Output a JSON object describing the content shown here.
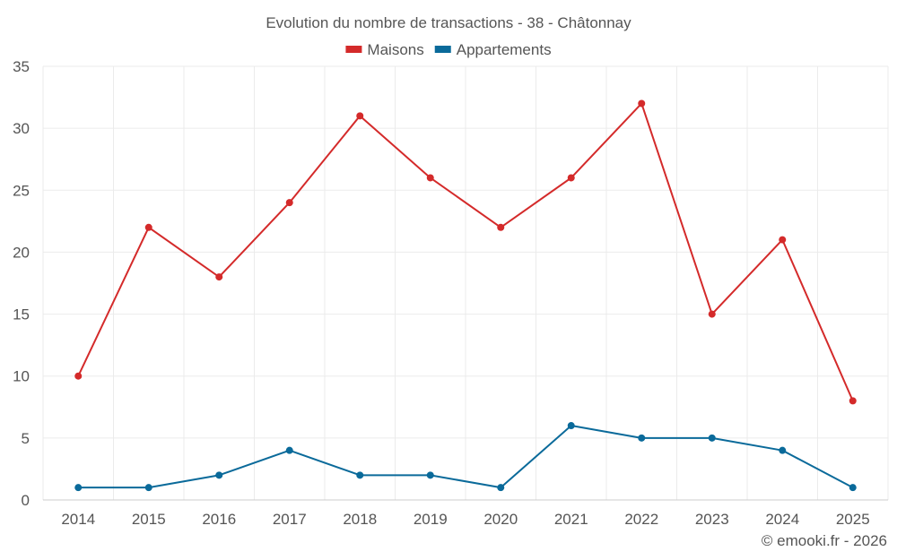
{
  "chart_data": {
    "type": "line",
    "title": "Evolution du nombre de transactions - 38 - Châtonnay",
    "categories": [
      "2014",
      "2015",
      "2016",
      "2017",
      "2018",
      "2019",
      "2020",
      "2021",
      "2022",
      "2023",
      "2024",
      "2025"
    ],
    "series": [
      {
        "name": "Maisons",
        "color": "#d42a2a",
        "values": [
          10,
          22,
          18,
          24,
          31,
          26,
          22,
          26,
          32,
          15,
          21,
          8
        ]
      },
      {
        "name": "Appartements",
        "color": "#0a6a9a",
        "values": [
          1,
          1,
          2,
          4,
          2,
          2,
          1,
          6,
          5,
          5,
          4,
          1
        ]
      }
    ],
    "ylim": [
      0,
      35
    ],
    "yticks": [
      0,
      5,
      10,
      15,
      20,
      25,
      30,
      35
    ],
    "grid": true,
    "legend": "top-center",
    "credit": "© emooki.fr - 2026"
  }
}
